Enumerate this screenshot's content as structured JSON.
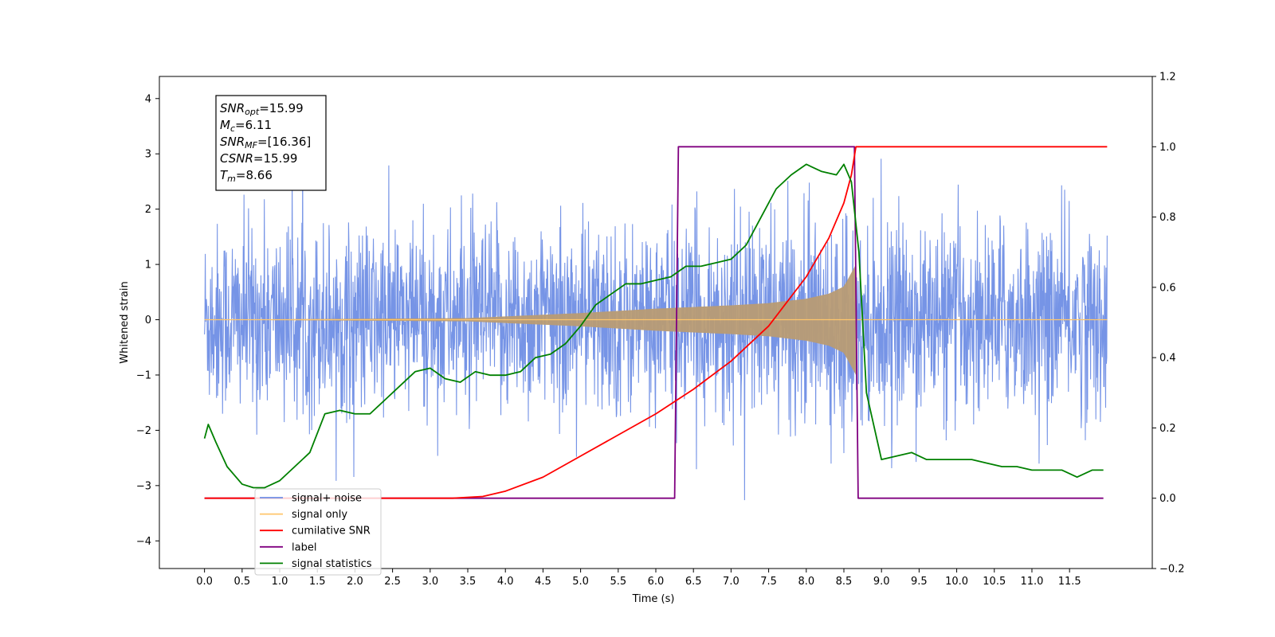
{
  "chart_data": {
    "type": "line",
    "xlabel": "Time (s)",
    "ylabel_left": "Whitened strain",
    "ylabel_right": "",
    "xlim": [
      -0.6,
      12.6
    ],
    "ylim_left": [
      -4.5,
      4.4
    ],
    "ylim_right": [
      -0.2,
      1.2
    ],
    "x_ticks": [
      "0.0",
      "0.5",
      "1.0",
      "1.5",
      "2.0",
      "2.5",
      "3.0",
      "3.5",
      "4.0",
      "4.5",
      "5.0",
      "5.5",
      "6.0",
      "6.5",
      "7.0",
      "7.5",
      "8.0",
      "8.5",
      "9.0",
      "9.5",
      "10.0",
      "10.5",
      "11.0",
      "11.5"
    ],
    "y_ticks_left": [
      "−4",
      "−3",
      "−2",
      "−1",
      "0",
      "1",
      "2",
      "3",
      "4"
    ],
    "y_ticks_right": [
      "−0.2",
      "0.0",
      "0.2",
      "0.4",
      "0.6",
      "0.8",
      "1.0",
      "1.2"
    ],
    "grid": false,
    "legend_position": "lower-left",
    "annotation": {
      "lines": [
        {
          "sym": "SNR",
          "sub": "opt",
          "text": "=15.99"
        },
        {
          "sym": "M",
          "sub": "c",
          "text": "=6.11"
        },
        {
          "sym": "SNR",
          "sub": "MF",
          "text": "=[16.36]"
        },
        {
          "sym": "CSNR",
          "sub": "",
          "text": "=15.99"
        },
        {
          "sym": "T",
          "sub": "m",
          "text": "=8.66"
        }
      ]
    },
    "series": [
      {
        "name": "signal+ noise",
        "color": "#6f8ee5",
        "axis": "left",
        "std": 0.95,
        "x_range": [
          0.0,
          12.0
        ]
      },
      {
        "name": "signal only",
        "color": "#ffc66b",
        "axis": "left",
        "merger_time": 8.66,
        "envelope_t": [
          0.0,
          3.5,
          5.0,
          6.0,
          7.0,
          7.5,
          8.0,
          8.3,
          8.5,
          8.6,
          8.66
        ],
        "envelope_a": [
          0.0,
          0.03,
          0.12,
          0.2,
          0.26,
          0.3,
          0.38,
          0.47,
          0.6,
          0.85,
          1.0
        ]
      },
      {
        "name": "cumilative SNR",
        "color": "#ff0000",
        "axis": "right",
        "x": [
          0.0,
          3.3,
          3.7,
          4.0,
          4.5,
          5.0,
          5.5,
          6.0,
          6.5,
          7.0,
          7.5,
          8.0,
          8.3,
          8.5,
          8.6,
          8.66,
          12.0
        ],
        "y": [
          0.0,
          0.0,
          0.005,
          0.02,
          0.06,
          0.12,
          0.18,
          0.24,
          0.31,
          0.39,
          0.49,
          0.63,
          0.74,
          0.84,
          0.92,
          1.0,
          1.0
        ]
      },
      {
        "name": "label",
        "color": "#800080",
        "axis": "right",
        "x": [
          0.0,
          6.25,
          6.3,
          8.64,
          8.69,
          11.95
        ],
        "y": [
          0.0,
          0.0,
          1.0,
          1.0,
          0.0,
          0.0
        ]
      },
      {
        "name": "signal statistics",
        "color": "#008000",
        "axis": "right",
        "x": [
          0.0,
          0.05,
          0.15,
          0.3,
          0.5,
          0.65,
          0.8,
          1.0,
          1.2,
          1.4,
          1.6,
          1.8,
          2.0,
          2.2,
          2.4,
          2.6,
          2.8,
          3.0,
          3.2,
          3.4,
          3.6,
          3.8,
          4.0,
          4.2,
          4.4,
          4.6,
          4.8,
          5.0,
          5.2,
          5.4,
          5.6,
          5.8,
          6.0,
          6.2,
          6.4,
          6.6,
          6.8,
          7.0,
          7.2,
          7.4,
          7.6,
          7.8,
          8.0,
          8.2,
          8.4,
          8.5,
          8.6,
          8.7,
          8.8,
          9.0,
          9.2,
          9.4,
          9.6,
          9.8,
          10.0,
          10.2,
          10.4,
          10.6,
          10.8,
          11.0,
          11.2,
          11.4,
          11.6,
          11.8,
          11.95
        ],
        "y": [
          0.17,
          0.21,
          0.16,
          0.09,
          0.04,
          0.03,
          0.03,
          0.05,
          0.09,
          0.13,
          0.24,
          0.25,
          0.24,
          0.24,
          0.28,
          0.32,
          0.36,
          0.37,
          0.34,
          0.33,
          0.36,
          0.35,
          0.35,
          0.36,
          0.4,
          0.41,
          0.44,
          0.49,
          0.55,
          0.58,
          0.61,
          0.61,
          0.62,
          0.63,
          0.66,
          0.66,
          0.67,
          0.68,
          0.72,
          0.8,
          0.88,
          0.92,
          0.95,
          0.93,
          0.92,
          0.95,
          0.9,
          0.7,
          0.3,
          0.11,
          0.12,
          0.13,
          0.11,
          0.11,
          0.11,
          0.11,
          0.1,
          0.09,
          0.09,
          0.08,
          0.08,
          0.08,
          0.06,
          0.08,
          0.08
        ]
      }
    ]
  }
}
